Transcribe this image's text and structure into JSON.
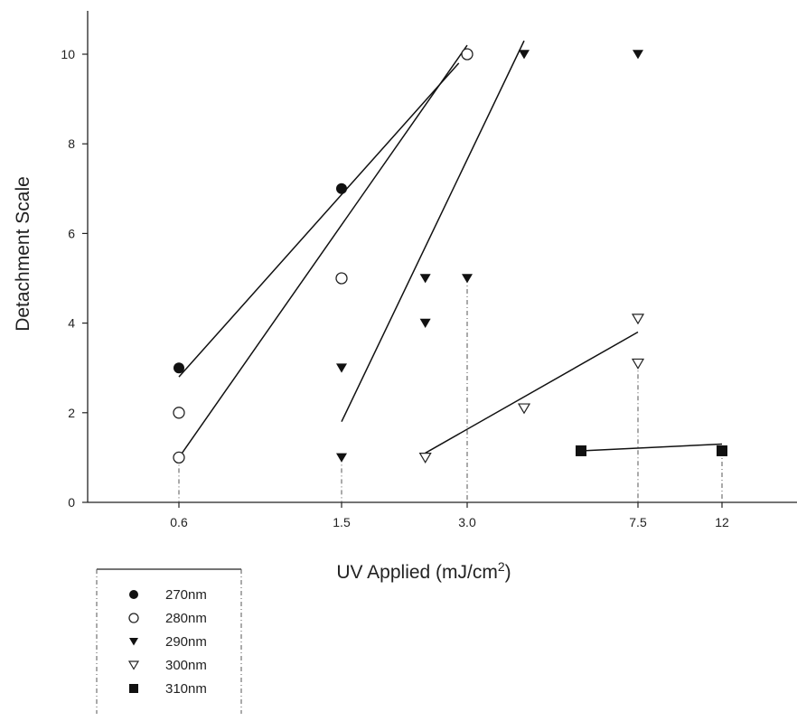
{
  "chart_data": {
    "type": "scatter",
    "title": "",
    "xlabel": "UV Applied (mJ/cm²)",
    "ylabel": "Detachment Scale",
    "x_scale": "categorical-log-like",
    "x_ticks": [
      "0.6",
      "1.5",
      "3.0",
      "7.5",
      "12"
    ],
    "y_ticks": [
      "0",
      "2",
      "4",
      "6",
      "8",
      "10"
    ],
    "ylim": [
      0,
      10
    ],
    "grid": false,
    "legend_position": "bottom-left",
    "series": [
      {
        "name": "270nm",
        "marker": "filled-circle",
        "points": [
          {
            "x": 0.6,
            "y": 3
          },
          {
            "x": 1.5,
            "y": 7
          }
        ],
        "fit": [
          {
            "x": 0.6,
            "y": 2.8
          },
          {
            "x": 2.9,
            "y": 9.8
          }
        ]
      },
      {
        "name": "280nm",
        "marker": "open-circle",
        "points": [
          {
            "x": 0.6,
            "y": 2
          },
          {
            "x": 0.6,
            "y": 1
          },
          {
            "x": 1.5,
            "y": 5
          },
          {
            "x": 3.0,
            "y": 10
          }
        ],
        "fit": [
          {
            "x": 0.6,
            "y": 1.0
          },
          {
            "x": 3.0,
            "y": 10.2
          }
        ]
      },
      {
        "name": "290nm",
        "marker": "filled-triangle-down",
        "points": [
          {
            "x": 1.5,
            "y": 3
          },
          {
            "x": 1.5,
            "y": 1
          },
          {
            "x": 2.5,
            "y": 5
          },
          {
            "x": 2.5,
            "y": 4
          },
          {
            "x": 3.0,
            "y": 5
          },
          {
            "x": 4.5,
            "y": 10
          },
          {
            "x": 7.5,
            "y": 10
          }
        ],
        "fit": [
          {
            "x": 1.5,
            "y": 1.8
          },
          {
            "x": 4.5,
            "y": 10.3
          }
        ]
      },
      {
        "name": "300nm",
        "marker": "open-triangle-down",
        "points": [
          {
            "x": 2.5,
            "y": 1
          },
          {
            "x": 4.5,
            "y": 2.1
          },
          {
            "x": 7.5,
            "y": 3.1
          },
          {
            "x": 7.5,
            "y": 4.1
          }
        ],
        "fit": [
          {
            "x": 2.5,
            "y": 1.1
          },
          {
            "x": 7.5,
            "y": 3.8
          }
        ]
      },
      {
        "name": "310nm",
        "marker": "filled-square",
        "points": [
          {
            "x": 6.0,
            "y": 1.15
          },
          {
            "x": 12,
            "y": 1.15
          }
        ],
        "fit": [
          {
            "x": 6.0,
            "y": 1.15
          },
          {
            "x": 12,
            "y": 1.3
          }
        ]
      }
    ]
  }
}
